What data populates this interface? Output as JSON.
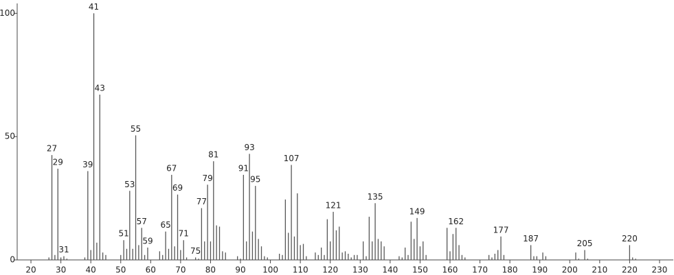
{
  "chart_data": {
    "type": "bar",
    "color": "#555555",
    "x": [
      26,
      27,
      28,
      29,
      30,
      31,
      32,
      38,
      39,
      40,
      41,
      42,
      43,
      44,
      45,
      50,
      51,
      52,
      53,
      54,
      55,
      56,
      57,
      58,
      59,
      63,
      64,
      65,
      66,
      67,
      68,
      69,
      70,
      71,
      72,
      75,
      76,
      77,
      78,
      79,
      80,
      81,
      82,
      83,
      84,
      85,
      89,
      90,
      91,
      92,
      93,
      94,
      95,
      96,
      97,
      98,
      99,
      103,
      104,
      105,
      106,
      107,
      108,
      109,
      110,
      111,
      112,
      115,
      116,
      117,
      118,
      119,
      120,
      121,
      122,
      123,
      124,
      125,
      126,
      127,
      128,
      129,
      131,
      132,
      133,
      134,
      135,
      136,
      137,
      138,
      143,
      144,
      145,
      146,
      147,
      148,
      149,
      150,
      151,
      152,
      159,
      160,
      161,
      162,
      163,
      164,
      165,
      173,
      174,
      175,
      176,
      177,
      178,
      187,
      188,
      189,
      191,
      192,
      202,
      203,
      205,
      206,
      220,
      221,
      222
    ],
    "values": [
      1,
      42.5,
      2,
      37,
      1,
      1.5,
      0.5,
      1,
      36,
      4,
      100,
      7,
      67,
      3,
      2,
      2,
      8,
      4.5,
      28,
      4.5,
      50.5,
      6,
      13,
      2,
      5,
      3.5,
      2,
      11.5,
      4.5,
      34.5,
      5.5,
      26.5,
      4,
      8,
      1,
      1,
      0.5,
      21,
      7.5,
      30.5,
      7.5,
      40,
      14,
      13.5,
      3.5,
      3,
      1.5,
      0.5,
      34.5,
      7.5,
      43,
      11.5,
      30,
      8.5,
      5.5,
      1.5,
      1,
      2.5,
      2,
      24.5,
      11,
      38.5,
      9.5,
      27,
      6,
      6.5,
      1.5,
      3,
      2,
      5,
      2,
      16.5,
      7.5,
      19.5,
      12,
      13.5,
      3,
      3.5,
      2.5,
      1,
      2,
      2,
      7.5,
      1.5,
      17.5,
      7.5,
      23,
      8.5,
      7.5,
      5.5,
      1.5,
      1,
      5,
      2,
      15.5,
      8.5,
      17,
      5.5,
      7.5,
      2,
      13,
      3.5,
      10.5,
      13,
      6,
      2,
      1,
      2,
      1,
      2.5,
      4,
      9.5,
      2,
      6,
      1.5,
      1.5,
      3,
      1.5,
      3,
      0.5,
      4,
      0.5,
      6,
      1,
      0.5
    ],
    "peak_labels": [
      27,
      29,
      31,
      39,
      41,
      43,
      51,
      53,
      55,
      57,
      59,
      65,
      67,
      69,
      71,
      75,
      77,
      79,
      81,
      91,
      93,
      95,
      107,
      121,
      135,
      149,
      162,
      177,
      187,
      205,
      220
    ],
    "xlim": [
      15.4,
      234.6
    ],
    "ylim": [
      0,
      104
    ],
    "xticks": [
      20,
      30,
      40,
      50,
      60,
      70,
      80,
      90,
      100,
      110,
      120,
      130,
      140,
      150,
      160,
      170,
      180,
      190,
      200,
      210,
      220,
      230
    ],
    "yticks": [
      0,
      50,
      100
    ]
  }
}
